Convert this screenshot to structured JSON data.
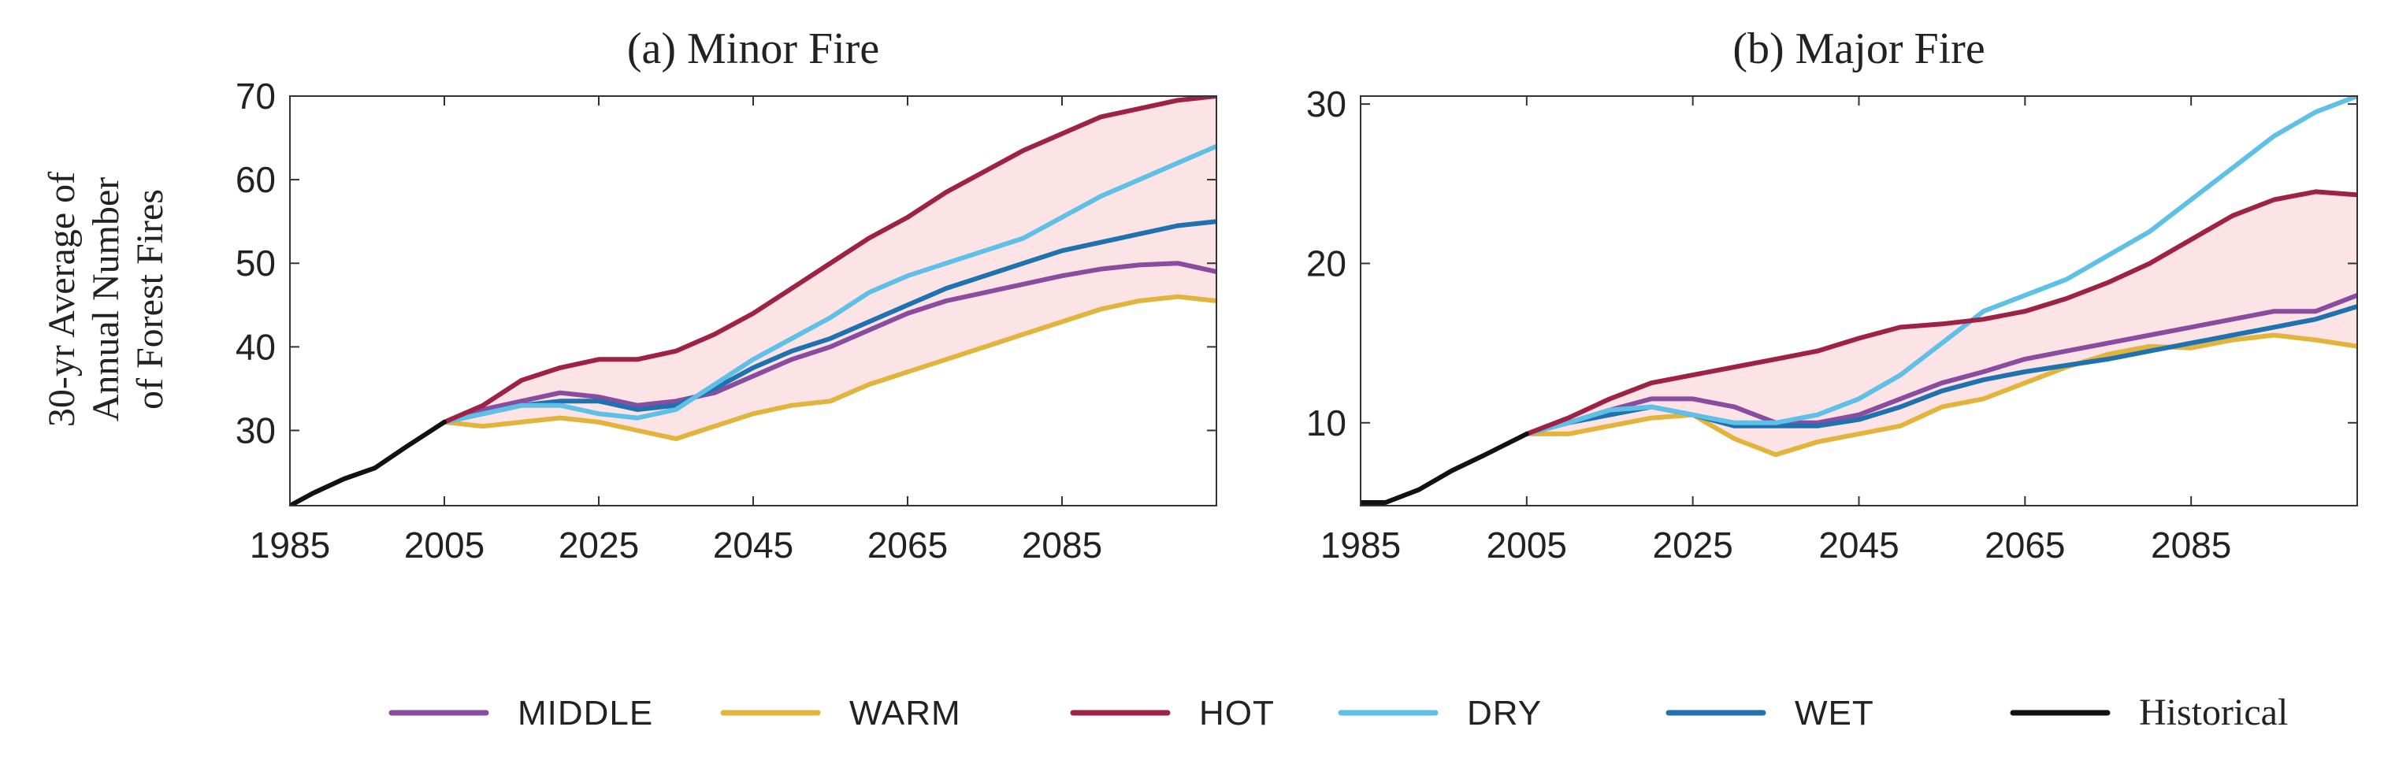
{
  "ylabel_lines": [
    "30-yr Average of",
    "Annual Number",
    "of Forest Fires"
  ],
  "legend": [
    {
      "name": "MIDDLE",
      "color": "#8a4c9e"
    },
    {
      "name": "WARM",
      "color": "#e3b43c"
    },
    {
      "name": "HOT",
      "color": "#9e2146"
    },
    {
      "name": "DRY",
      "color": "#5ec0e6"
    },
    {
      "name": "WET",
      "color": "#1f72b0"
    },
    {
      "name": "Historical",
      "color": "#111111"
    }
  ],
  "chart_data": [
    {
      "type": "line",
      "title": "(a) Minor Fire",
      "xlabel": "",
      "ylabel": "30-yr Average of Annual Number of Forest Fires",
      "xlim": [
        1985,
        2105
      ],
      "ylim": [
        21,
        70
      ],
      "xticks": [
        1985,
        2005,
        2025,
        2045,
        2065,
        2085
      ],
      "yticks": [
        30,
        40,
        50,
        60,
        70
      ],
      "shaded_band": {
        "between": [
          "WARM",
          "HOT"
        ],
        "color": "#fbe3e6"
      },
      "series": [
        {
          "name": "Historical",
          "color": "#111111",
          "x": [
            1985,
            1988,
            1992,
            1996,
            2000,
            2005
          ],
          "y": [
            21,
            22.5,
            24.2,
            25.5,
            28,
            31
          ]
        },
        {
          "name": "MIDDLE",
          "color": "#8a4c9e",
          "x": [
            2005,
            2010,
            2015,
            2020,
            2025,
            2030,
            2035,
            2040,
            2045,
            2050,
            2055,
            2060,
            2065,
            2070,
            2075,
            2080,
            2085,
            2090,
            2095,
            2100,
            2105
          ],
          "y": [
            31,
            32.5,
            33.5,
            34.5,
            34,
            33,
            33.5,
            34.5,
            36.5,
            38.5,
            40,
            42,
            44,
            45.5,
            46.5,
            47.5,
            48.5,
            49.3,
            49.8,
            50,
            49
          ]
        },
        {
          "name": "WARM",
          "color": "#e3b43c",
          "x": [
            2005,
            2010,
            2015,
            2020,
            2025,
            2030,
            2035,
            2040,
            2045,
            2050,
            2055,
            2060,
            2065,
            2070,
            2075,
            2080,
            2085,
            2090,
            2095,
            2100,
            2105
          ],
          "y": [
            31,
            30.5,
            31,
            31.5,
            31,
            30,
            29,
            30.5,
            32,
            33,
            33.5,
            35.5,
            37,
            38.5,
            40,
            41.5,
            43,
            44.5,
            45.5,
            46,
            45.5
          ]
        },
        {
          "name": "HOT",
          "color": "#9e2146",
          "x": [
            2005,
            2010,
            2015,
            2020,
            2025,
            2030,
            2035,
            2040,
            2045,
            2050,
            2055,
            2060,
            2065,
            2070,
            2075,
            2080,
            2085,
            2090,
            2095,
            2100,
            2105
          ],
          "y": [
            31,
            33,
            36,
            37.5,
            38.5,
            38.5,
            39.5,
            41.5,
            44,
            47,
            50,
            53,
            55.5,
            58.5,
            61,
            63.5,
            65.5,
            67.5,
            68.5,
            69.5,
            70
          ]
        },
        {
          "name": "DRY",
          "color": "#5ec0e6",
          "x": [
            2005,
            2010,
            2015,
            2020,
            2025,
            2030,
            2035,
            2040,
            2045,
            2050,
            2055,
            2060,
            2065,
            2070,
            2075,
            2080,
            2085,
            2090,
            2095,
            2100,
            2105
          ],
          "y": [
            31,
            32,
            33,
            33,
            32,
            31.5,
            32.5,
            35.5,
            38.5,
            41,
            43.5,
            46.5,
            48.5,
            50,
            51.5,
            53,
            55.5,
            58,
            60,
            62,
            64
          ]
        },
        {
          "name": "WET",
          "color": "#1f72b0",
          "x": [
            2005,
            2010,
            2015,
            2020,
            2025,
            2030,
            2035,
            2040,
            2045,
            2050,
            2055,
            2060,
            2065,
            2070,
            2075,
            2080,
            2085,
            2090,
            2095,
            2100,
            2105
          ],
          "y": [
            31,
            32,
            33,
            33.5,
            33.5,
            32.5,
            33,
            35,
            37.5,
            39.5,
            41,
            43,
            45,
            47,
            48.5,
            50,
            51.5,
            52.5,
            53.5,
            54.5,
            55
          ]
        }
      ]
    },
    {
      "type": "line",
      "title": "(b) Major Fire",
      "xlabel": "",
      "ylabel": "",
      "xlim": [
        1985,
        2105
      ],
      "ylim": [
        4.8,
        30.5
      ],
      "xticks": [
        1985,
        2005,
        2025,
        2045,
        2065,
        2085
      ],
      "yticks": [
        10,
        20,
        30
      ],
      "shaded_band": {
        "between": [
          "WARM",
          "HOT"
        ],
        "color": "#fbe3e6"
      },
      "series": [
        {
          "name": "Historical",
          "color": "#111111",
          "x": [
            1985,
            1988,
            1992,
            1996,
            2000,
            2005
          ],
          "y": [
            5,
            5,
            5.8,
            7,
            8,
            9.3
          ]
        },
        {
          "name": "MIDDLE",
          "color": "#8a4c9e",
          "x": [
            2005,
            2010,
            2015,
            2020,
            2025,
            2030,
            2035,
            2040,
            2045,
            2050,
            2055,
            2060,
            2065,
            2070,
            2075,
            2080,
            2085,
            2090,
            2095,
            2100,
            2105
          ],
          "y": [
            9.3,
            10,
            10.8,
            11.5,
            11.5,
            11,
            10,
            10,
            10.5,
            11.5,
            12.5,
            13.2,
            14,
            14.5,
            15,
            15.5,
            16,
            16.5,
            17,
            17,
            18
          ]
        },
        {
          "name": "WARM",
          "color": "#e3b43c",
          "x": [
            2005,
            2010,
            2015,
            2020,
            2025,
            2030,
            2035,
            2040,
            2045,
            2050,
            2055,
            2060,
            2065,
            2070,
            2075,
            2080,
            2085,
            2090,
            2095,
            2100,
            2105
          ],
          "y": [
            9.3,
            9.3,
            9.8,
            10.3,
            10.5,
            9,
            8,
            8.8,
            9.3,
            9.8,
            11,
            11.5,
            12.5,
            13.5,
            14.3,
            14.8,
            14.7,
            15.2,
            15.5,
            15.2,
            14.8
          ]
        },
        {
          "name": "HOT",
          "color": "#9e2146",
          "x": [
            2005,
            2010,
            2015,
            2020,
            2025,
            2030,
            2035,
            2040,
            2045,
            2050,
            2055,
            2060,
            2065,
            2070,
            2075,
            2080,
            2085,
            2090,
            2095,
            2100,
            2105
          ],
          "y": [
            9.3,
            10.3,
            11.5,
            12.5,
            13,
            13.5,
            14,
            14.5,
            15.3,
            16,
            16.2,
            16.5,
            17,
            17.8,
            18.8,
            20,
            21.5,
            23,
            24,
            24.5,
            24.3
          ]
        },
        {
          "name": "DRY",
          "color": "#5ec0e6",
          "x": [
            2005,
            2010,
            2015,
            2020,
            2025,
            2030,
            2035,
            2040,
            2045,
            2050,
            2055,
            2060,
            2065,
            2070,
            2075,
            2080,
            2085,
            2090,
            2095,
            2100,
            2105
          ],
          "y": [
            9.3,
            10,
            10.8,
            11,
            10.5,
            10,
            10,
            10.5,
            11.5,
            13,
            15,
            17,
            18,
            19,
            20.5,
            22,
            24,
            26,
            28,
            29.5,
            30.5
          ]
        },
        {
          "name": "WET",
          "color": "#1f72b0",
          "x": [
            2005,
            2010,
            2015,
            2020,
            2025,
            2030,
            2035,
            2040,
            2045,
            2050,
            2055,
            2060,
            2065,
            2070,
            2075,
            2080,
            2085,
            2090,
            2095,
            2100,
            2105
          ],
          "y": [
            9.3,
            10,
            10.5,
            11,
            10.5,
            9.8,
            9.8,
            9.8,
            10.2,
            11,
            12,
            12.7,
            13.2,
            13.6,
            14,
            14.5,
            15,
            15.5,
            16,
            16.5,
            17.3
          ]
        }
      ]
    }
  ]
}
